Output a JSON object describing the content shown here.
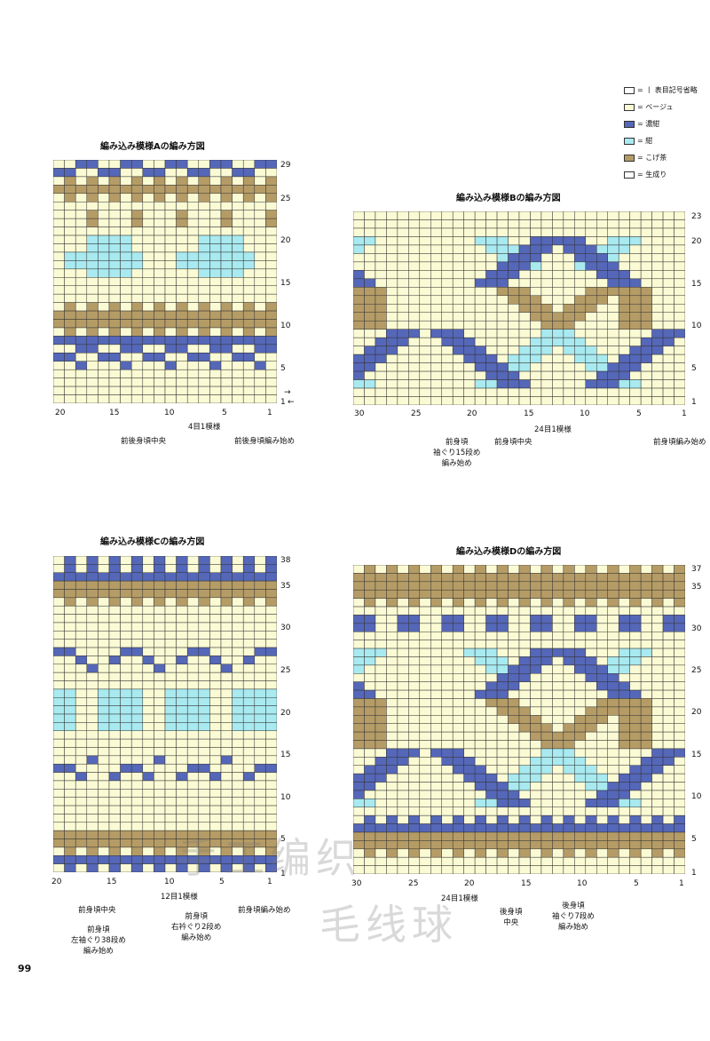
{
  "colors": {
    "beige": "#fafad4",
    "navy_dark": "#5567b8",
    "navy_light": "#a8eaf0",
    "brown": "#b59c66",
    "natural": "#ffffff",
    "grid": "#333333"
  },
  "legend": [
    {
      "key": "knit",
      "label": "= 丨 表目記号省略",
      "color": "#ffffff"
    },
    {
      "key": "beige",
      "label": "= ベージュ",
      "color": "#fafad4"
    },
    {
      "key": "dark_navy",
      "label": "= 濃紺",
      "color": "#5567b8"
    },
    {
      "key": "navy",
      "label": "= 紺",
      "color": "#a8eaf0"
    },
    {
      "key": "brown",
      "label": "= こげ茶",
      "color": "#b59c66"
    },
    {
      "key": "natural",
      "label": "= 生成り",
      "color": "#ffffff"
    }
  ],
  "charts": {
    "A": {
      "title": "編み込み模様Aの編み方図",
      "cols": 20,
      "rows": 29,
      "row_numbers": [
        "29",
        "25",
        "20",
        "15",
        "10",
        "5",
        "1"
      ],
      "col_numbers": [
        "20",
        "15",
        "10",
        "5",
        "1"
      ],
      "repeat_label": "4目1模様",
      "notes": [
        "前後身頃中央",
        "前後身頃編み始め"
      ]
    },
    "B": {
      "title": "編み込み模様Bの編み方図",
      "cols": 30,
      "rows": 23,
      "row_numbers": [
        "23",
        "20",
        "15",
        "10",
        "5",
        "1"
      ],
      "col_numbers": [
        "30",
        "25",
        "20",
        "15",
        "10",
        "5",
        "1"
      ],
      "repeat_label": "24目1模様",
      "notes": [
        "前身頃\n袖ぐり15段め\n編み始め",
        "前身頃中央",
        "前身頃編み始め"
      ]
    },
    "C": {
      "title": "編み込み模様Cの編み方図",
      "cols": 20,
      "rows": 38,
      "row_numbers": [
        "38",
        "35",
        "30",
        "25",
        "20",
        "15",
        "10",
        "5",
        "1"
      ],
      "col_numbers": [
        "20",
        "15",
        "10",
        "5",
        "1"
      ],
      "repeat_label": "12目1模様",
      "notes": [
        "前身頃中央",
        "前身頃\n左袖ぐり38段め\n編み始め",
        "前身頃\n右衿ぐり2段め\n編み始め",
        "前身頃編み始め"
      ]
    },
    "D": {
      "title": "編み込み模様Dの編み方図",
      "cols": 30,
      "rows": 37,
      "row_numbers": [
        "37",
        "35",
        "30",
        "25",
        "20",
        "15",
        "10",
        "5",
        "1"
      ],
      "col_numbers": [
        "30",
        "25",
        "20",
        "15",
        "10",
        "5",
        "1"
      ],
      "repeat_label": "24目1模様",
      "notes": [
        "後身頃\n中央",
        "後身頃\n袖ぐり7段め\n編み始め"
      ]
    }
  },
  "page_number": "99",
  "watermark_top": "手工编织",
  "watermark_bottom": "毛线球"
}
